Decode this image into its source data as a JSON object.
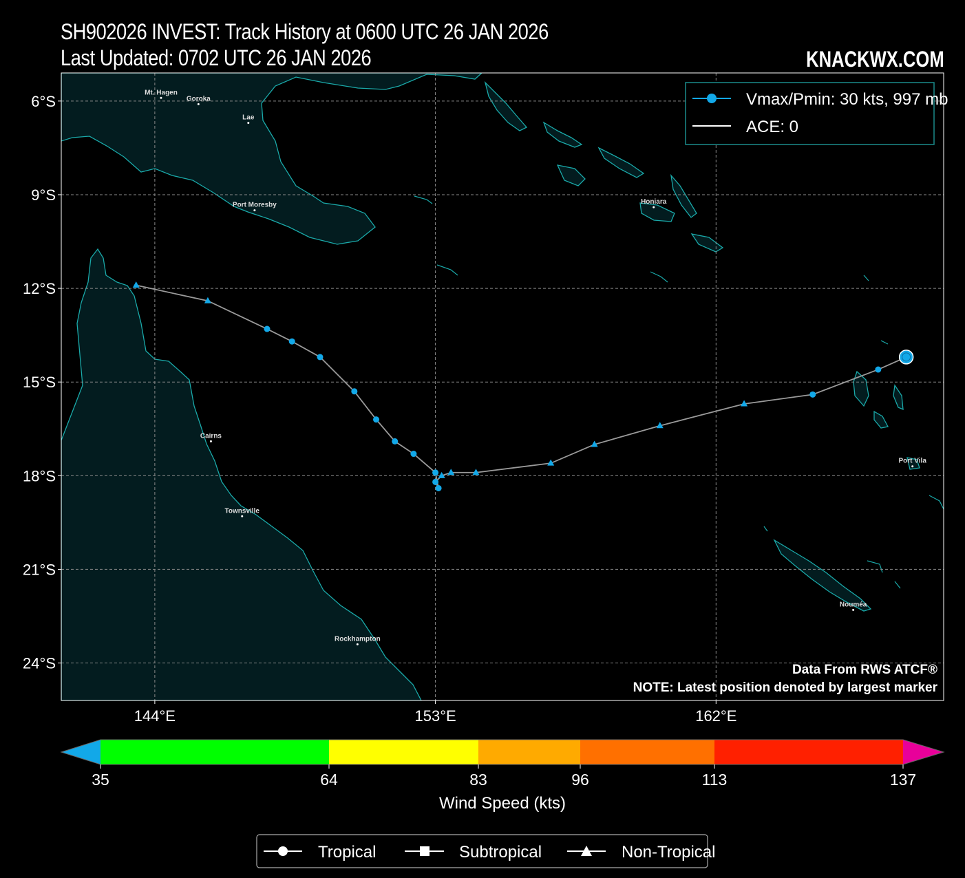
{
  "header": {
    "title": "SH902026 INVEST: Track History at 0600 UTC 26 JAN 2026",
    "subtitle": "Last Updated: 0702 UTC 26 JAN 2026",
    "brand": "KNACKWX.COM"
  },
  "axes": {
    "lat_labels": [
      "6°S",
      "9°S",
      "12°S",
      "15°S",
      "18°S",
      "21°S",
      "24°S"
    ],
    "lat_values": [
      -6,
      -9,
      -12,
      -15,
      -18,
      -21,
      -24
    ],
    "lon_labels": [
      "144°E",
      "153°E",
      "162°E"
    ],
    "lon_values": [
      144,
      153,
      162
    ],
    "lon_range": [
      141,
      169.3
    ],
    "lat_range": [
      -25.2,
      -5.1
    ],
    "grid": true
  },
  "legend": {
    "vmax_label": "Vmax/Pmin: 30 kts, 997 mb",
    "ace_label": "ACE: 0",
    "placement": "top-right"
  },
  "notes": {
    "source": "Data From RWS ATCF®",
    "latest": "NOTE: Latest position denoted by largest marker"
  },
  "cities": [
    {
      "name": "Mt. Hagen",
      "lon": 144.2,
      "lat": -5.9
    },
    {
      "name": "Goroka",
      "lon": 145.4,
      "lat": -6.1
    },
    {
      "name": "Lae",
      "lon": 147.0,
      "lat": -6.7
    },
    {
      "name": "Port Moresby",
      "lon": 147.2,
      "lat": -9.5
    },
    {
      "name": "Honiara",
      "lon": 160.0,
      "lat": -9.4
    },
    {
      "name": "Cairns",
      "lon": 145.8,
      "lat": -16.9
    },
    {
      "name": "Townsville",
      "lon": 146.8,
      "lat": -19.3
    },
    {
      "name": "Rockhampton",
      "lon": 150.5,
      "lat": -23.4
    },
    {
      "name": "Port Vila",
      "lon": 168.3,
      "lat": -17.7
    },
    {
      "name": "Nouméa",
      "lon": 166.4,
      "lat": -22.3
    }
  ],
  "chart_data": {
    "type": "line",
    "series": [
      {
        "points": [
          {
            "lon": 143.4,
            "lat": -11.9,
            "type": "non-tropical"
          },
          {
            "lon": 145.7,
            "lat": -12.4,
            "type": "non-tropical"
          },
          {
            "lon": 147.6,
            "lat": -13.3,
            "type": "tropical"
          },
          {
            "lon": 148.4,
            "lat": -13.7,
            "type": "tropical"
          },
          {
            "lon": 149.3,
            "lat": -14.2,
            "type": "tropical"
          },
          {
            "lon": 150.4,
            "lat": -15.3,
            "type": "tropical"
          },
          {
            "lon": 151.1,
            "lat": -16.2,
            "type": "tropical"
          },
          {
            "lon": 151.7,
            "lat": -16.9,
            "type": "tropical"
          },
          {
            "lon": 152.3,
            "lat": -17.3,
            "type": "tropical"
          },
          {
            "lon": 153.0,
            "lat": -17.9,
            "type": "tropical"
          },
          {
            "lon": 153.1,
            "lat": -18.4,
            "type": "tropical"
          },
          {
            "lon": 153.0,
            "lat": -18.2,
            "type": "tropical"
          },
          {
            "lon": 153.2,
            "lat": -18.0,
            "type": "non-tropical"
          },
          {
            "lon": 153.5,
            "lat": -17.9,
            "type": "non-tropical"
          },
          {
            "lon": 154.3,
            "lat": -17.9,
            "type": "non-tropical"
          },
          {
            "lon": 156.7,
            "lat": -17.6,
            "type": "non-tropical"
          },
          {
            "lon": 158.1,
            "lat": -17.0,
            "type": "non-tropical"
          },
          {
            "lon": 160.2,
            "lat": -16.4,
            "type": "non-tropical"
          },
          {
            "lon": 162.9,
            "lat": -15.7,
            "type": "non-tropical"
          },
          {
            "lon": 165.1,
            "lat": -15.4,
            "type": "tropical"
          },
          {
            "lon": 167.2,
            "lat": -14.6,
            "type": "tropical"
          },
          {
            "lon": 168.1,
            "lat": -14.2,
            "type": "tropical",
            "latest": true
          }
        ],
        "color": "#12a8e8",
        "line_color": "#9a9a9a"
      }
    ]
  },
  "colorbar": {
    "title": "Wind Speed (kts)",
    "ticks": [
      "35",
      "64",
      "83",
      "96",
      "113",
      "137"
    ],
    "tick_values": [
      35,
      64,
      83,
      96,
      113,
      137
    ],
    "colors": {
      "under": "#12a8e8",
      "b35_64": "#00ff00",
      "b64_83": "#ffff00",
      "b83_96": "#ffaa00",
      "b96_113": "#ff7000",
      "b113_137": "#ff2000",
      "over": "#e8009a"
    }
  },
  "bottom_legend": {
    "tropical": "Tropical",
    "subtropical": "Subtropical",
    "non_tropical": "Non-Tropical"
  },
  "colors": {
    "land": "#031c1f",
    "coast": "#1aa9a9",
    "grid": "#8a8a8a",
    "legend_border": "#1a8a8a"
  }
}
